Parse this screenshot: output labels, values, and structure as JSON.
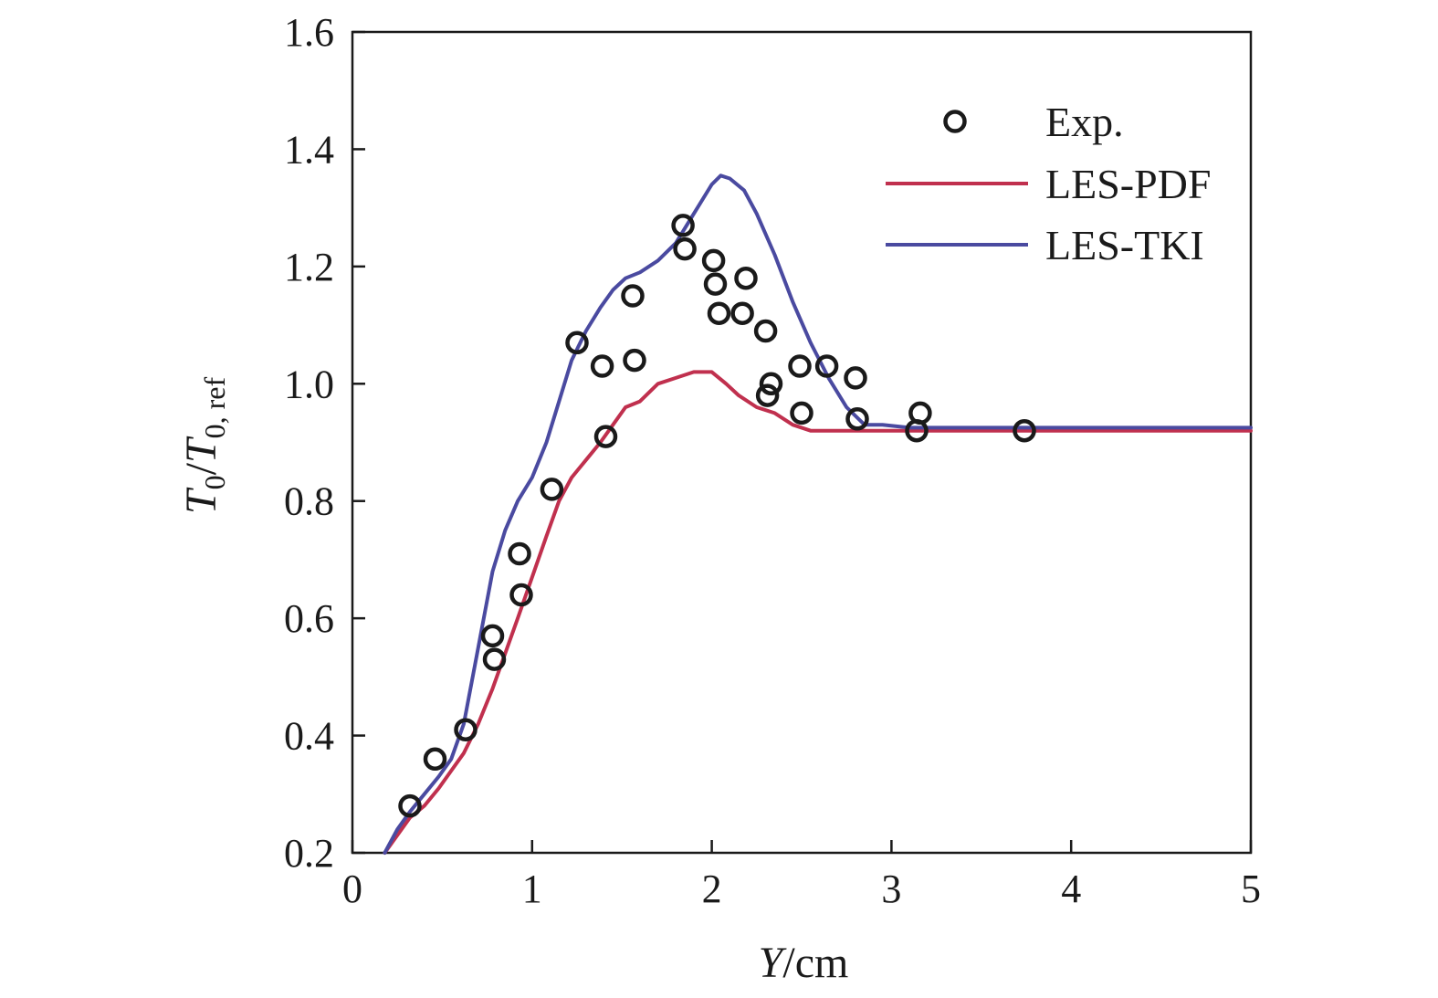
{
  "chart_data": {
    "type": "line",
    "xlabel_italic": "Y",
    "xlabel_unit": "/cm",
    "ylabel_T": "T",
    "ylabel_sub0": "0",
    "ylabel_slash": "/",
    "ylabel_sub_ref": "0, ref",
    "xlim": [
      0,
      5
    ],
    "ylim": [
      0.2,
      1.6
    ],
    "xticks": [
      "0",
      "1",
      "2",
      "3",
      "4",
      "5"
    ],
    "yticks": [
      "0.2",
      "0.4",
      "0.6",
      "0.8",
      "1.0",
      "1.2",
      "1.4",
      "1.6"
    ],
    "grid": false,
    "legend_position": "top-right",
    "colors": {
      "exp": "#1a1a1a",
      "les_pdf": "#c0304e",
      "les_tki": "#4a4aa0"
    },
    "series": [
      {
        "name": "Exp.",
        "style": "markers",
        "marker": "open-circle",
        "x": [
          0.32,
          0.46,
          0.63,
          0.78,
          0.79,
          0.93,
          0.94,
          1.11,
          1.25,
          1.39,
          1.41,
          1.56,
          1.57,
          1.84,
          1.85,
          2.01,
          2.02,
          2.04,
          2.17,
          2.19,
          2.3,
          2.31,
          2.33,
          2.49,
          2.5,
          2.64,
          2.8,
          2.81,
          3.14,
          3.16,
          3.74
        ],
        "y": [
          0.28,
          0.36,
          0.41,
          0.57,
          0.53,
          0.71,
          0.64,
          0.82,
          1.07,
          1.03,
          0.91,
          1.15,
          1.04,
          1.27,
          1.23,
          1.21,
          1.17,
          1.12,
          1.12,
          1.18,
          1.09,
          0.98,
          1.0,
          1.03,
          0.95,
          1.03,
          1.01,
          0.94,
          0.92,
          0.95,
          0.92
        ]
      },
      {
        "name": "LES-PDF",
        "style": "line",
        "x": [
          0.18,
          0.25,
          0.32,
          0.4,
          0.48,
          0.55,
          0.62,
          0.7,
          0.78,
          0.85,
          0.92,
          1.0,
          1.08,
          1.15,
          1.22,
          1.3,
          1.38,
          1.45,
          1.52,
          1.6,
          1.7,
          1.8,
          1.9,
          2.0,
          2.08,
          2.15,
          2.25,
          2.35,
          2.45,
          2.55,
          2.7,
          3.0,
          3.5,
          4.0,
          4.5,
          5.0
        ],
        "y": [
          0.2,
          0.23,
          0.26,
          0.28,
          0.31,
          0.34,
          0.37,
          0.42,
          0.48,
          0.54,
          0.6,
          0.67,
          0.74,
          0.8,
          0.84,
          0.87,
          0.9,
          0.93,
          0.96,
          0.97,
          1.0,
          1.01,
          1.02,
          1.02,
          1.0,
          0.98,
          0.96,
          0.95,
          0.93,
          0.92,
          0.92,
          0.92,
          0.92,
          0.92,
          0.92,
          0.92
        ]
      },
      {
        "name": "LES-TKI",
        "style": "line",
        "x": [
          0.18,
          0.25,
          0.32,
          0.4,
          0.48,
          0.55,
          0.62,
          0.7,
          0.78,
          0.85,
          0.92,
          1.0,
          1.08,
          1.15,
          1.22,
          1.3,
          1.38,
          1.45,
          1.52,
          1.6,
          1.7,
          1.8,
          1.9,
          2.0,
          2.05,
          2.1,
          2.18,
          2.25,
          2.35,
          2.45,
          2.55,
          2.65,
          2.75,
          2.85,
          2.95,
          3.1,
          3.5,
          4.0,
          4.5,
          5.0
        ],
        "y": [
          0.2,
          0.24,
          0.27,
          0.3,
          0.33,
          0.36,
          0.42,
          0.55,
          0.68,
          0.75,
          0.8,
          0.84,
          0.9,
          0.97,
          1.04,
          1.09,
          1.13,
          1.16,
          1.18,
          1.19,
          1.21,
          1.24,
          1.29,
          1.34,
          1.355,
          1.35,
          1.33,
          1.29,
          1.22,
          1.14,
          1.07,
          1.01,
          0.96,
          0.93,
          0.93,
          0.925,
          0.925,
          0.925,
          0.925,
          0.925
        ]
      }
    ]
  }
}
